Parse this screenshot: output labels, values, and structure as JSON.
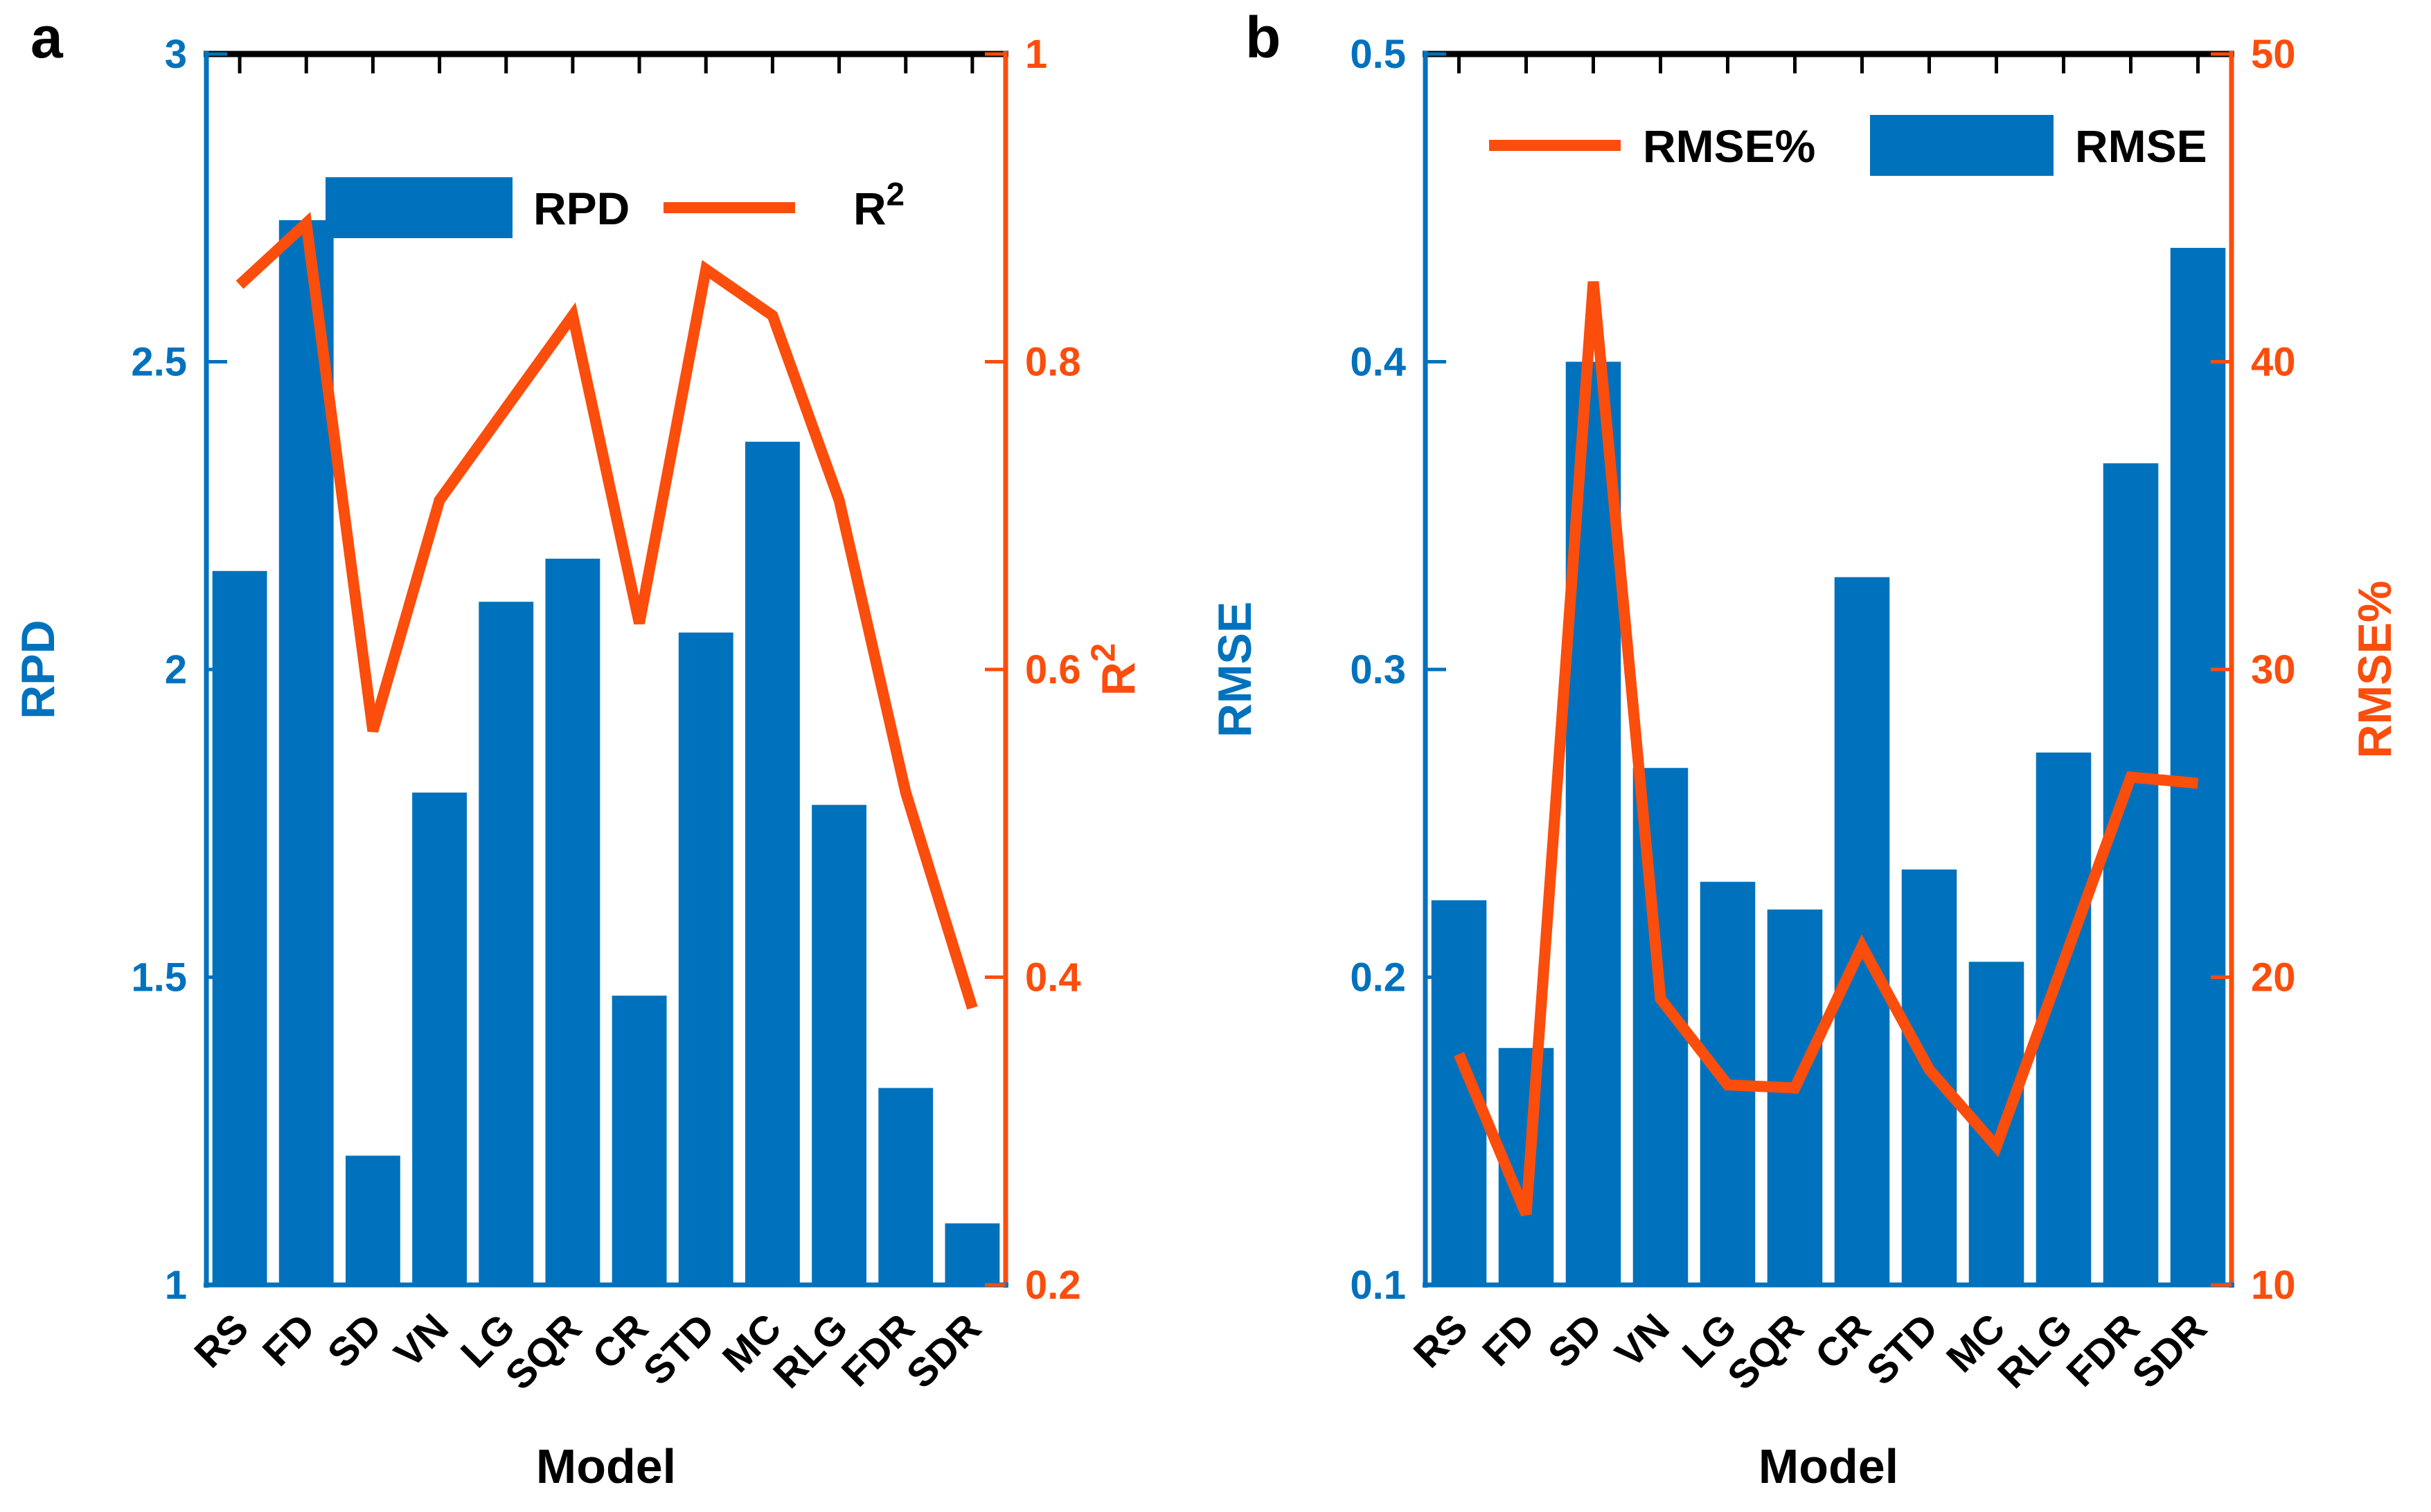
{
  "colors": {
    "bar_blue": "#0072BD",
    "line_orange": "#FB4D0C",
    "axis_black": "#000000",
    "label_black": "#000000",
    "background": "#FFFFFF"
  },
  "chart_data": [
    {
      "type": "bar",
      "panel_letter": "a",
      "xlabel": "Model",
      "categories": [
        "RS",
        "FD",
        "SD",
        "VN",
        "LG",
        "SQR",
        "CR",
        "STD",
        "MC",
        "RLG",
        "FDR",
        "SDR"
      ],
      "series": [
        {
          "name": "RPD",
          "type": "bar",
          "axis": "left",
          "values": [
            2.16,
            2.73,
            1.21,
            1.8,
            2.11,
            2.18,
            1.47,
            2.06,
            2.37,
            1.78,
            1.32,
            1.1
          ]
        },
        {
          "name": "R2",
          "type": "line",
          "axis": "right",
          "values": [
            0.85,
            0.89,
            0.56,
            0.71,
            0.77,
            0.83,
            0.63,
            0.86,
            0.83,
            0.71,
            0.52,
            0.38
          ]
        }
      ],
      "left_axis": {
        "label": "RPD",
        "label_sup": "",
        "ylim": [
          1,
          3
        ],
        "tick_values": [
          1,
          1.5,
          2,
          2.5,
          3
        ],
        "tick_labels": [
          "1",
          "1.5",
          "2",
          "2.5",
          "3"
        ]
      },
      "right_axis": {
        "label": "R",
        "label_sup": "2",
        "ylim": [
          0.2,
          1
        ],
        "tick_values": [
          0.2,
          0.4,
          0.6,
          0.8,
          1
        ],
        "tick_labels": [
          "0.2",
          "0.4",
          "0.6",
          "0.8",
          "1"
        ]
      },
      "legend": [
        {
          "swatch": "bar",
          "label": "RPD",
          "label_sup": ""
        },
        {
          "swatch": "line",
          "label": "R",
          "label_sup": "2"
        }
      ],
      "grid": false,
      "legend_position": "top-center"
    },
    {
      "type": "bar",
      "panel_letter": "b",
      "xlabel": "Model",
      "categories": [
        "RS",
        "FD",
        "SD",
        "VN",
        "LG",
        "SQR",
        "CR",
        "STD",
        "MC",
        "RLG",
        "FDR",
        "SDR"
      ],
      "series": [
        {
          "name": "RMSE",
          "type": "bar",
          "axis": "left",
          "values": [
            0.225,
            0.177,
            0.4,
            0.268,
            0.231,
            0.222,
            0.33,
            0.235,
            0.205,
            0.273,
            0.367,
            0.437
          ]
        },
        {
          "name": "RMSE%",
          "type": "line",
          "axis": "right",
          "values": [
            17.5,
            12.3,
            42.6,
            19.3,
            16.5,
            16.4,
            21.0,
            17.0,
            14.5,
            20.5,
            26.5,
            26.3
          ]
        }
      ],
      "left_axis": {
        "label": "RMSE",
        "label_sup": "",
        "ylim": [
          0.1,
          0.5
        ],
        "tick_values": [
          0.1,
          0.2,
          0.3,
          0.4,
          0.5
        ],
        "tick_labels": [
          "0.1",
          "0.2",
          "0.3",
          "0.4",
          "0.5"
        ]
      },
      "right_axis": {
        "label": "RMSE%",
        "label_sup": "",
        "ylim": [
          10,
          50
        ],
        "tick_values": [
          10,
          20,
          30,
          40,
          50
        ],
        "tick_labels": [
          "10",
          "20",
          "30",
          "40",
          "50"
        ]
      },
      "legend": [
        {
          "swatch": "line",
          "label": "RMSE%",
          "label_sup": ""
        },
        {
          "swatch": "bar",
          "label": "RMSE",
          "label_sup": ""
        }
      ],
      "grid": false,
      "legend_position": "top-center"
    }
  ]
}
